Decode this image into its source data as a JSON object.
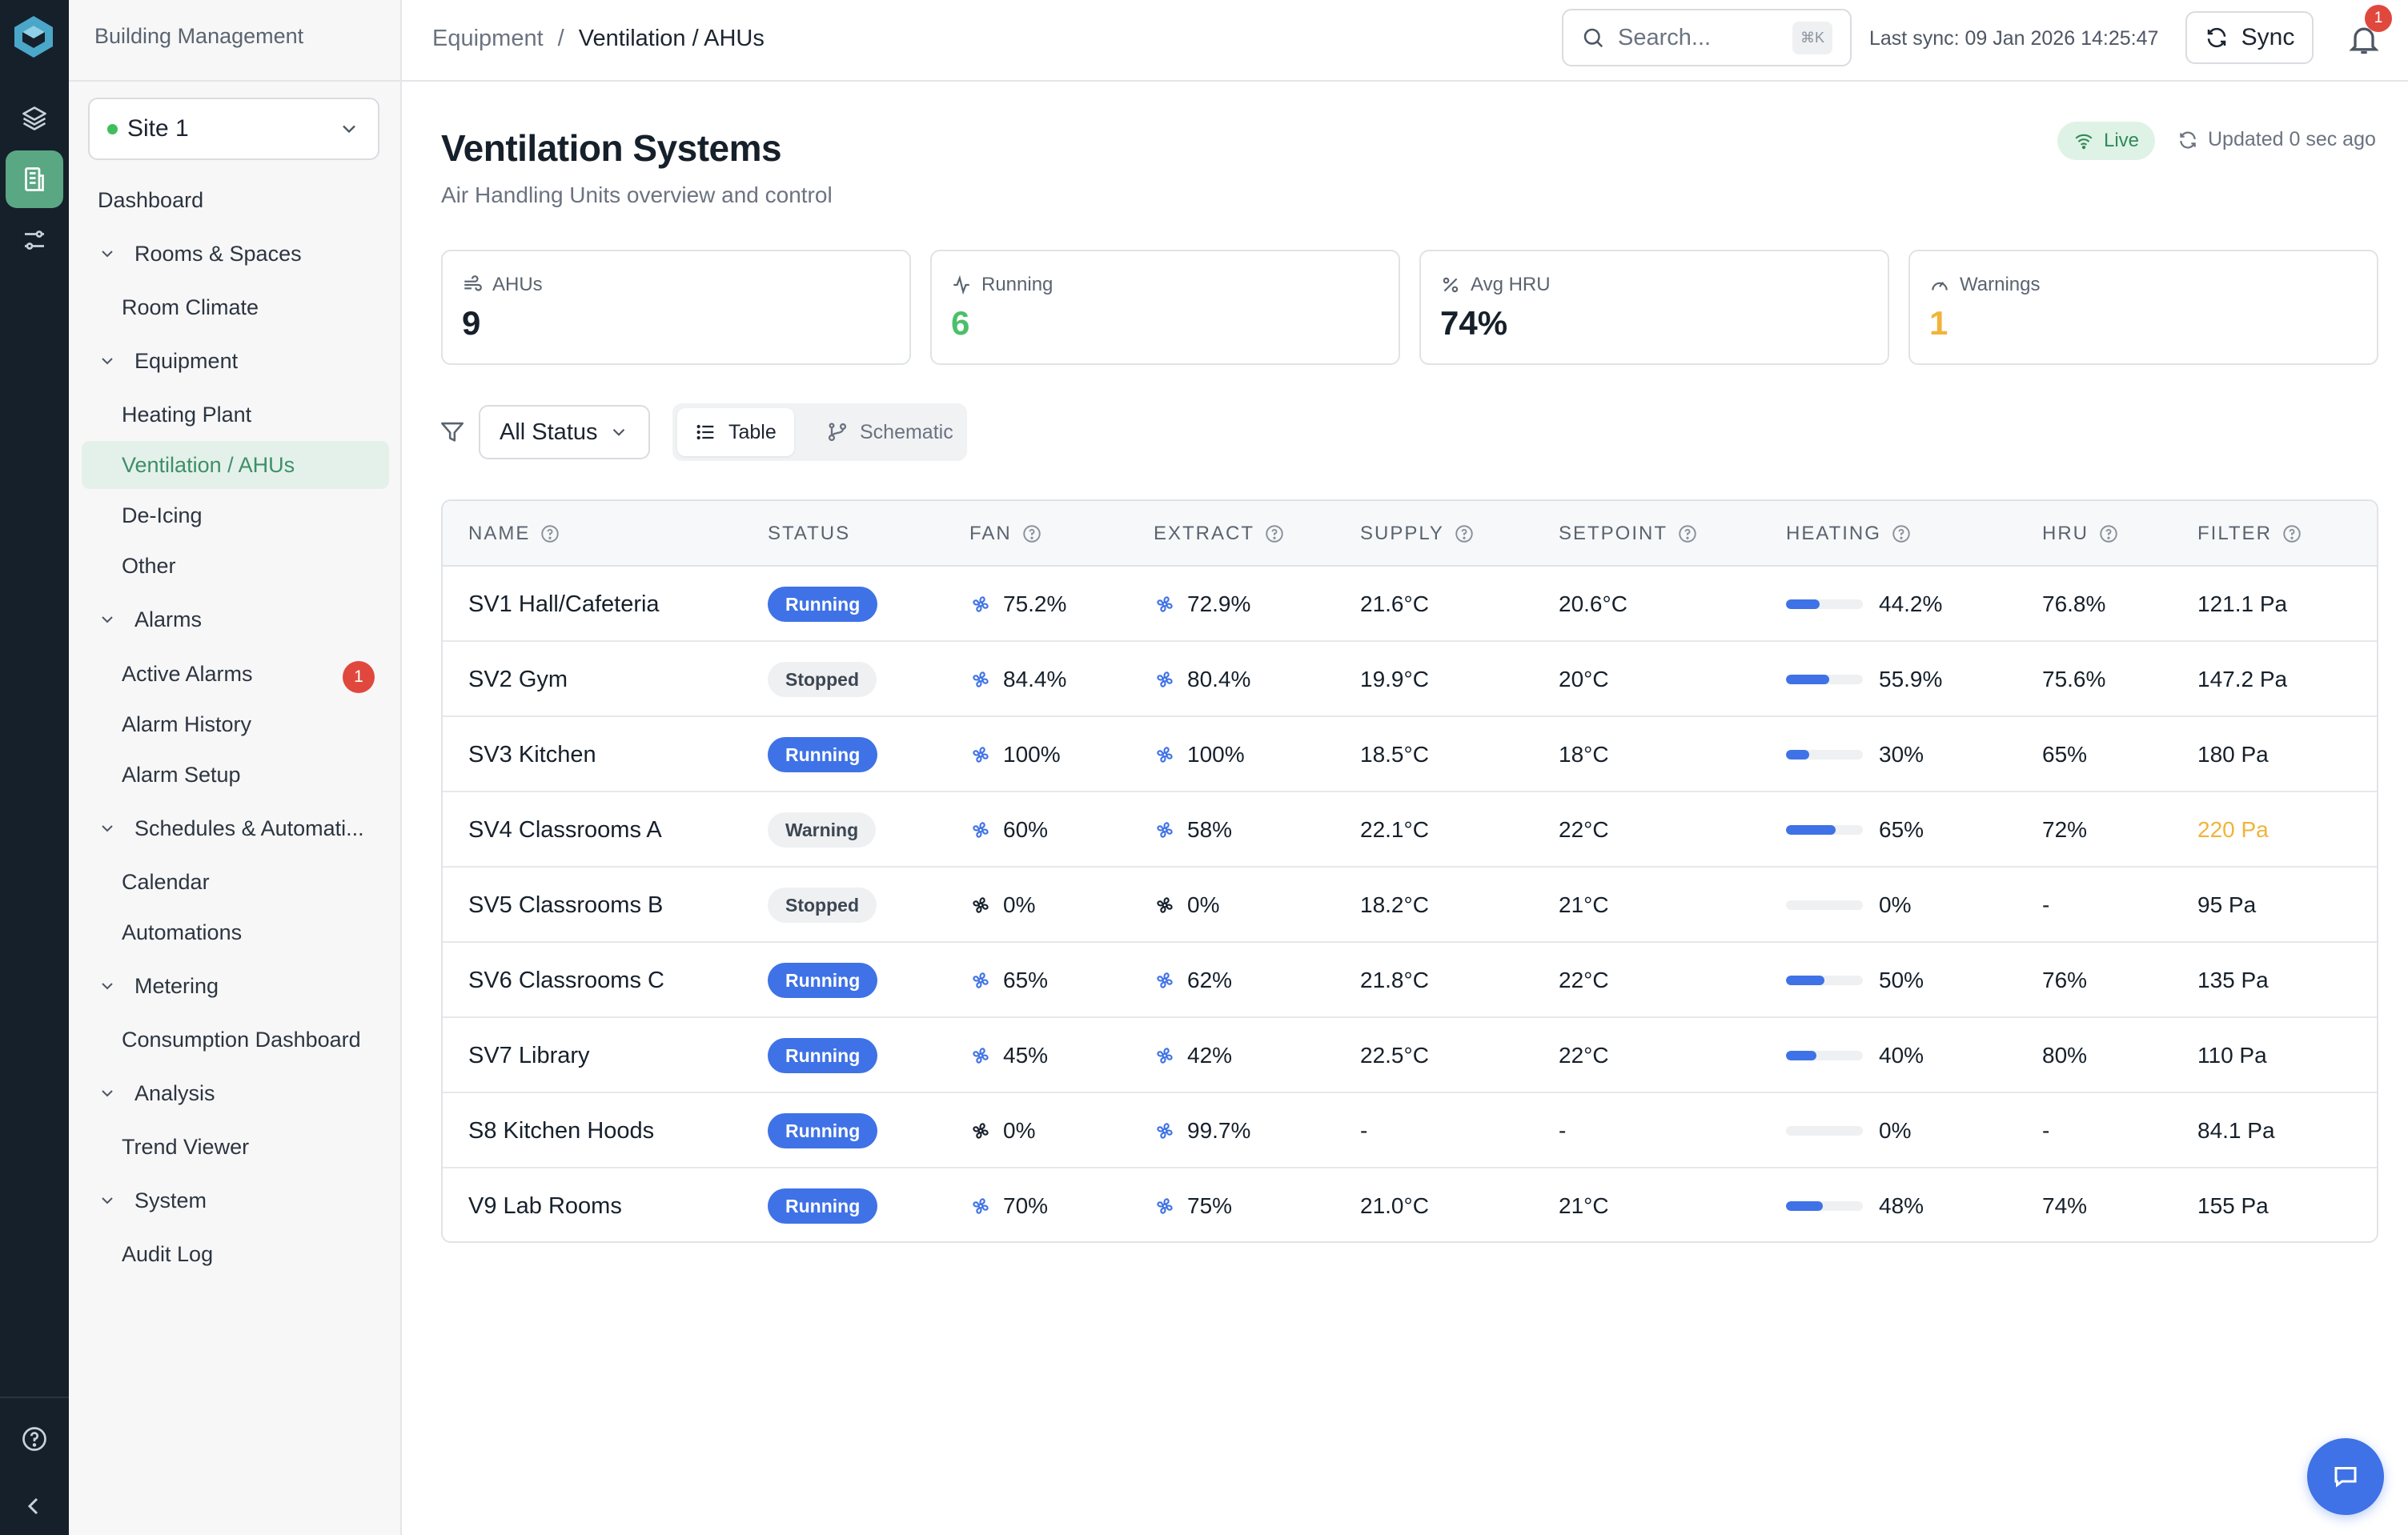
{
  "app": {
    "brand": "Building Management",
    "site": "Site 1"
  },
  "nav": {
    "dashboard": "Dashboard",
    "rooms_spaces": "Rooms & Spaces",
    "room_climate": "Room Climate",
    "equipment": "Equipment",
    "heating_plant": "Heating Plant",
    "ventilation": "Ventilation / AHUs",
    "de_icing": "De-Icing",
    "other": "Other",
    "alarms": "Alarms",
    "active_alarms": "Active Alarms",
    "active_alarms_count": "1",
    "alarm_history": "Alarm History",
    "alarm_setup": "Alarm Setup",
    "schedules": "Schedules & Automati...",
    "calendar": "Calendar",
    "automations": "Automations",
    "metering": "Metering",
    "consumption": "Consumption Dashboard",
    "analysis": "Analysis",
    "trend_viewer": "Trend Viewer",
    "system": "System",
    "audit_log": "Audit Log"
  },
  "topbar": {
    "crumb_parent": "Equipment",
    "crumb_sep": "/",
    "crumb_current": "Ventilation / AHUs",
    "search_placeholder": "Search...",
    "search_shortcut": "⌘K",
    "last_sync": "Last sync: 09 Jan 2026 14:25:47",
    "sync_label": "Sync",
    "notif_count": "1"
  },
  "page": {
    "title": "Ventilation Systems",
    "subtitle": "Air Handling Units overview and control",
    "live_label": "Live",
    "updated_label": "Updated 0 sec ago"
  },
  "stats": [
    {
      "label": "AHUs",
      "value": "9",
      "color": "#16202b",
      "icon": "ahu-icon"
    },
    {
      "label": "Running",
      "value": "6",
      "color": "#4cbf6a",
      "icon": "activity-icon"
    },
    {
      "label": "Avg HRU",
      "value": "74%",
      "color": "#16202b",
      "icon": "percent-icon"
    },
    {
      "label": "Warnings",
      "value": "1",
      "color": "#f0b43a",
      "icon": "gauge-icon"
    }
  ],
  "filters": {
    "status": "All Status",
    "view_table": "Table",
    "view_schematic": "Schematic"
  },
  "table": {
    "headers": [
      "NAME",
      "STATUS",
      "FAN",
      "EXTRACT",
      "SUPPLY",
      "SETPOINT",
      "HEATING",
      "HRU",
      "FILTER"
    ],
    "rows": [
      {
        "name": "SV1 Hall/Cafeteria",
        "status": "Running",
        "fan": "75.2%",
        "extract": "72.9%",
        "supply": "21.6°C",
        "setpoint": "20.6°C",
        "heating_pct": 44.2,
        "heating": "44.2%",
        "hru": "76.8%",
        "filter": "121.1 Pa"
      },
      {
        "name": "SV2 Gym",
        "status": "Stopped",
        "fan": "84.4%",
        "extract": "80.4%",
        "supply": "19.9°C",
        "setpoint": "20°C",
        "heating_pct": 55.9,
        "heating": "55.9%",
        "hru": "75.6%",
        "filter": "147.2 Pa"
      },
      {
        "name": "SV3 Kitchen",
        "status": "Running",
        "fan": "100%",
        "extract": "100%",
        "supply": "18.5°C",
        "setpoint": "18°C",
        "heating_pct": 30,
        "heating": "30%",
        "hru": "65%",
        "filter": "180 Pa"
      },
      {
        "name": "SV4 Classrooms A",
        "status": "Warning",
        "fan": "60%",
        "extract": "58%",
        "supply": "22.1°C",
        "setpoint": "22°C",
        "heating_pct": 65,
        "heating": "65%",
        "hru": "72%",
        "filter": "220 Pa"
      },
      {
        "name": "SV5 Classrooms B",
        "status": "Stopped",
        "fan": "0%",
        "extract": "0%",
        "supply": "18.2°C",
        "setpoint": "21°C",
        "heating_pct": 0,
        "heating": "0%",
        "hru": "-",
        "filter": "95 Pa"
      },
      {
        "name": "SV6 Classrooms C",
        "status": "Running",
        "fan": "65%",
        "extract": "62%",
        "supply": "21.8°C",
        "setpoint": "22°C",
        "heating_pct": 50,
        "heating": "50%",
        "hru": "76%",
        "filter": "135 Pa"
      },
      {
        "name": "SV7 Library",
        "status": "Running",
        "fan": "45%",
        "extract": "42%",
        "supply": "22.5°C",
        "setpoint": "22°C",
        "heating_pct": 40,
        "heating": "40%",
        "hru": "80%",
        "filter": "110 Pa"
      },
      {
        "name": "S8 Kitchen Hoods",
        "status": "Running",
        "fan": "0%",
        "extract": "99.7%",
        "supply": "-",
        "setpoint": "-",
        "heating_pct": 0,
        "heating": "0%",
        "hru": "-",
        "filter": "84.1 Pa"
      },
      {
        "name": "V9 Lab Rooms",
        "status": "Running",
        "fan": "70%",
        "extract": "75%",
        "supply": "21.0°C",
        "setpoint": "21°C",
        "heating_pct": 48,
        "heating": "48%",
        "hru": "74%",
        "filter": "155 Pa"
      }
    ]
  },
  "colors": {
    "accent": "#3f72e6",
    "nav_active": "#3d8f67",
    "warning": "#f0b43a",
    "fan_on": "#3f72e6",
    "fan_off": "#16202b"
  }
}
